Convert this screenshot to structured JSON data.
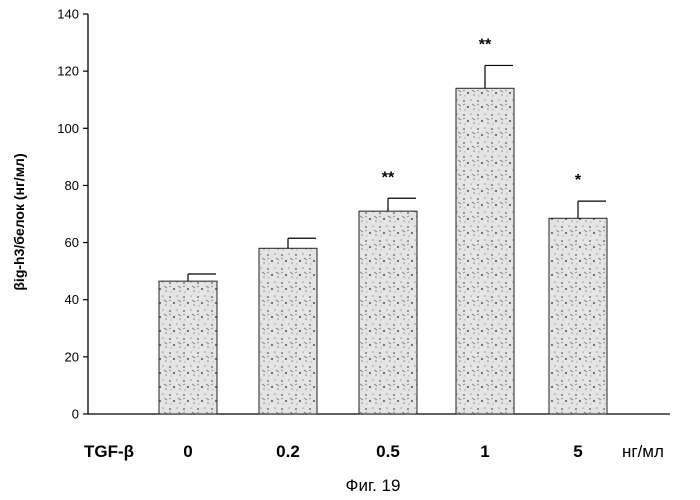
{
  "chart_data": {
    "type": "bar",
    "title": "",
    "xlabel": "",
    "ylabel": "βig-h3/белок (нг/мл)",
    "ylim": [
      0,
      140
    ],
    "yticks": [
      0,
      20,
      40,
      60,
      80,
      100,
      120,
      140
    ],
    "categories": [
      "0",
      "0.2",
      "0.5",
      "1",
      "5"
    ],
    "values": [
      46.5,
      58,
      71,
      114,
      68.5
    ],
    "errors": [
      2.5,
      3.5,
      4.5,
      8,
      6
    ],
    "significance": [
      "",
      "",
      "**",
      "**",
      "*"
    ],
    "x_row_label": "TGF-β",
    "x_unit": "нг/мл",
    "bar_fill": "#dcdcdc",
    "bar_speckle": "#555555",
    "grid": false,
    "legend": "none"
  },
  "caption": "Фиг. 19"
}
